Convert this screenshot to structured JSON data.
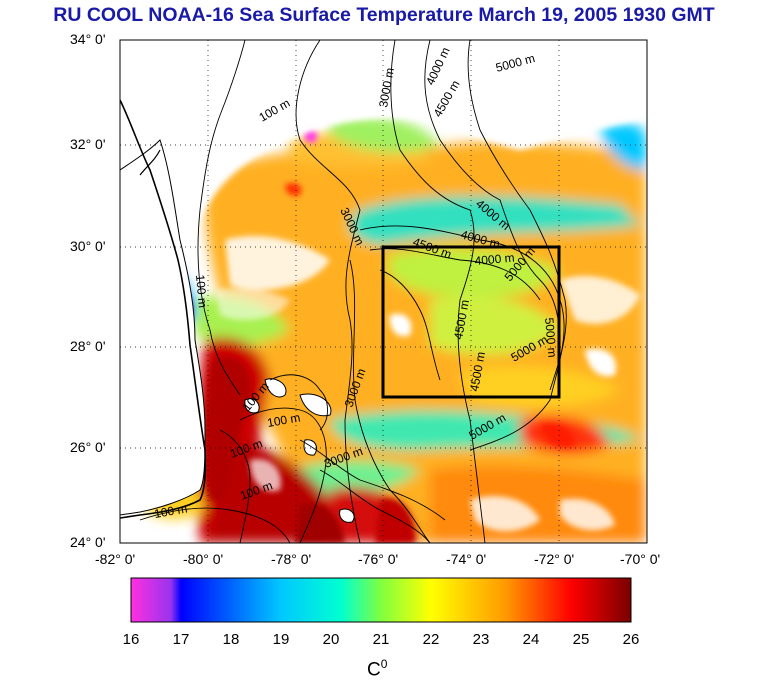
{
  "title": "RU COOL  NOAA-16 Sea Surface Temperature March 19, 2005 1930 GMT",
  "map": {
    "lon_range": [
      -82,
      -70
    ],
    "lat_range": [
      24,
      34
    ],
    "grid": "dotted",
    "study_box": {
      "lon": [
        -76,
        -72
      ],
      "lat": [
        27,
        30
      ]
    },
    "lat_labels": [
      "34° 0'",
      "32° 0'",
      "30° 0'",
      "28° 0'",
      "26° 0'",
      "24° 0'"
    ],
    "lon_labels": [
      "-82° 0'",
      "-80° 0'",
      "-78° 0'",
      "-76° 0'",
      "-74° 0'",
      "-72° 0'",
      "-70° 0'"
    ],
    "contour_labels": [
      "100 m",
      "100 m",
      "100 m",
      "100 m",
      "100 m",
      "100 m",
      "100 m",
      "3000 m",
      "3000 m",
      "3000 m",
      "3000 m",
      "4000 m",
      "4000 m",
      "4000 m",
      "4000 m",
      "4500 m",
      "4500 m",
      "4500 m",
      "4500 m",
      "5000 m",
      "5000 m",
      "5000 m",
      "5000 m",
      "5000 m"
    ]
  },
  "colorbar": {
    "ticks": [
      "16",
      "17",
      "18",
      "19",
      "20",
      "21",
      "22",
      "23",
      "24",
      "25",
      "26"
    ],
    "unit": "C",
    "unit_sup": "0",
    "stops": [
      "#ff33dd",
      "#0000ff",
      "#00e0ff",
      "#ffff00",
      "#ff0000",
      "#800000"
    ]
  }
}
